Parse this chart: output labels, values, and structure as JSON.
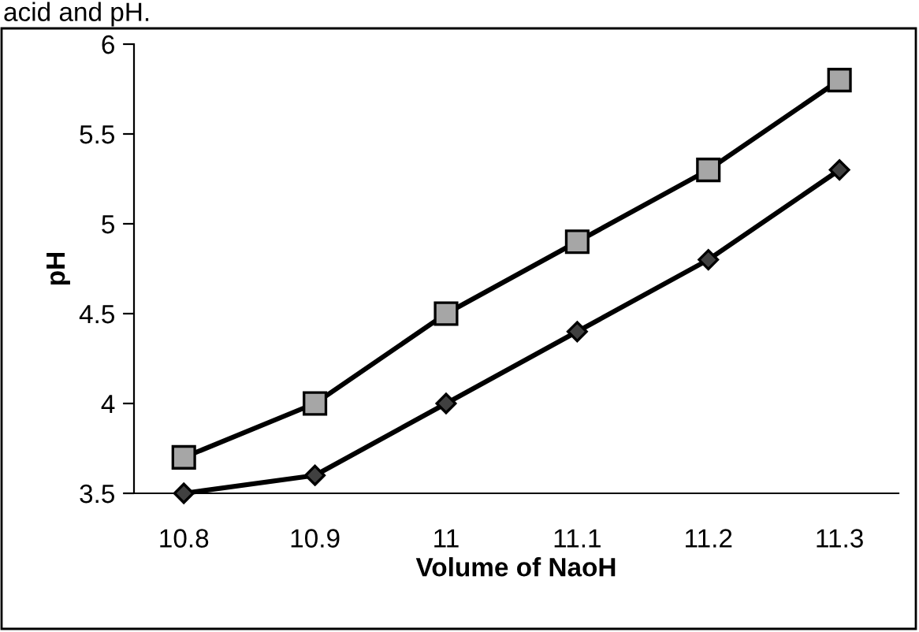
{
  "chart_data": {
    "type": "line",
    "xlabel": "Volume of NaoH",
    "ylabel": "pH",
    "annotations": [
      "acid and pH."
    ],
    "categories": [
      "10.8",
      "10.9",
      "11",
      "11.1",
      "11.2",
      "11.3"
    ],
    "series": [
      {
        "color": "#000000",
        "marker": "square",
        "values": [
          3.7,
          4.0,
          4.5,
          4.9,
          5.3,
          5.8
        ]
      },
      {
        "color": "#000000",
        "marker": "diamond",
        "values": [
          3.5,
          3.6,
          4.0,
          4.4,
          4.8,
          5.3
        ]
      }
    ],
    "ylim": [
      3.5,
      6
    ],
    "yticks": [
      3.5,
      4,
      4.5,
      5,
      5.5,
      6
    ],
    "grid": false,
    "legend": false,
    "line_style": "solid"
  }
}
